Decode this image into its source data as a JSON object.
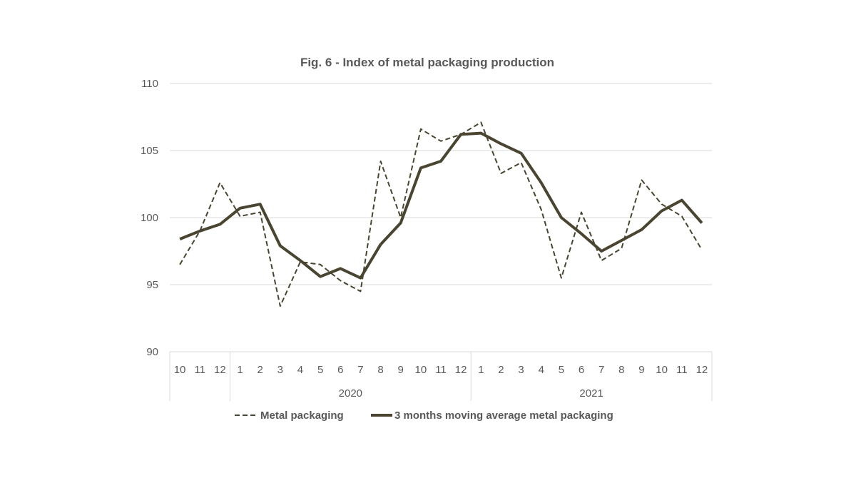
{
  "chart_data": {
    "type": "line",
    "title": "Fig. 6 - Index of metal packaging production",
    "xlabel": "",
    "ylabel": "",
    "ylim": [
      90,
      110
    ],
    "yticks": [
      "90",
      "95",
      "100",
      "105",
      "110"
    ],
    "grid": true,
    "legend_position": "bottom",
    "categories": [
      "10",
      "11",
      "12",
      "1",
      "2",
      "3",
      "4",
      "5",
      "6",
      "7",
      "8",
      "9",
      "10",
      "11",
      "12",
      "1",
      "2",
      "3",
      "4",
      "5",
      "6",
      "7",
      "8",
      "9",
      "10",
      "11",
      "12"
    ],
    "groups": [
      {
        "label": "",
        "count": 3
      },
      {
        "label": "2020",
        "count": 12
      },
      {
        "label": "2021",
        "count": 12
      }
    ],
    "series": [
      {
        "name": "Metal packaging",
        "style": "dashed",
        "color": "#4a4530",
        "values": [
          96.5,
          99.0,
          102.6,
          100.1,
          100.4,
          93.4,
          96.7,
          96.5,
          95.3,
          94.5,
          104.2,
          100.0,
          106.6,
          105.7,
          106.2,
          107.1,
          103.3,
          104.1,
          100.6,
          95.5,
          100.4,
          96.8,
          97.7,
          102.8,
          101.0,
          100.1,
          97.6
        ]
      },
      {
        "name": "3 months moving average metal packaging",
        "style": "solid",
        "color": "#4a4530",
        "values": [
          98.4,
          99.0,
          99.5,
          100.7,
          101.0,
          97.9,
          96.8,
          95.6,
          96.2,
          95.5,
          98.0,
          99.6,
          103.7,
          104.2,
          106.2,
          106.3,
          105.5,
          104.8,
          102.6,
          100.0,
          98.8,
          97.5,
          98.3,
          99.1,
          100.5,
          101.3,
          99.6
        ]
      }
    ]
  }
}
